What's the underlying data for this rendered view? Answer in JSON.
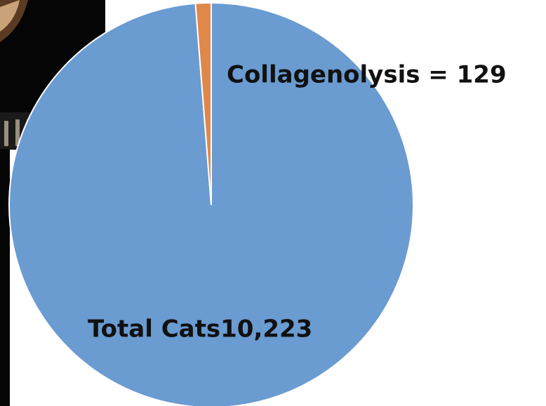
{
  "chart_data": {
    "type": "pie",
    "values": [
      10223,
      129
    ],
    "value_labels": [
      "Total Cats10,223",
      "Collagenolysis = 129"
    ],
    "colors": [
      "#6a9bd1",
      "#e0884a"
    ]
  }
}
